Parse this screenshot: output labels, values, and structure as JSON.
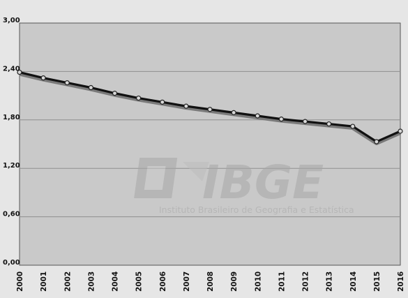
{
  "chart_data": {
    "type": "line",
    "x": [
      "2000",
      "2001",
      "2002",
      "2003",
      "2004",
      "2005",
      "2006",
      "2007",
      "2008",
      "2009",
      "2010",
      "2011",
      "2012",
      "2013",
      "2014",
      "2015",
      "2016"
    ],
    "series": [
      {
        "values": [
          2.39,
          2.32,
          2.26,
          2.2,
          2.13,
          2.07,
          2.02,
          1.97,
          1.93,
          1.89,
          1.85,
          1.81,
          1.78,
          1.75,
          1.72,
          1.53,
          1.66
        ]
      }
    ],
    "ylim": [
      0,
      3
    ],
    "yticks": [
      "0,00",
      "0,60",
      "1,20",
      "1,80",
      "2,40",
      "3,00"
    ],
    "ytick_values": [
      0,
      0.6,
      1.2,
      1.8,
      2.4,
      3.0
    ],
    "grid": true,
    "line_color": "#111111"
  },
  "watermark": {
    "logo_text": "IBGE",
    "caption": "Instituto Brasileiro de Geografia e Estatística"
  }
}
